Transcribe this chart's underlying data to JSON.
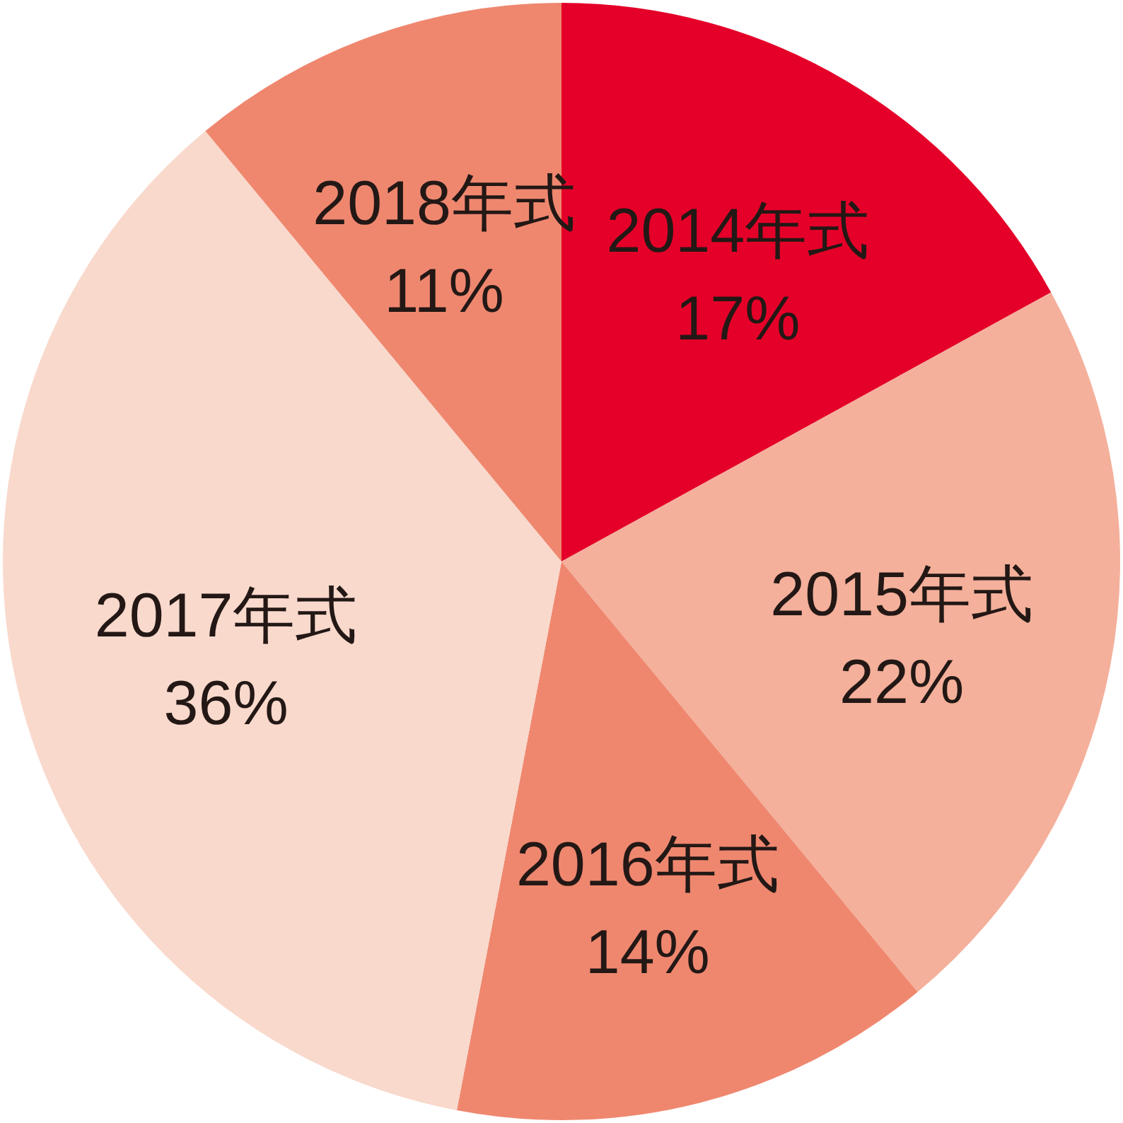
{
  "chart_data": {
    "type": "pie",
    "categories": [
      "2014年式",
      "2015年式",
      "2016年式",
      "2017年式",
      "2018年式"
    ],
    "values": [
      17,
      22,
      14,
      36,
      11
    ],
    "colors": [
      "#e50029",
      "#f4b09b",
      "#ef876f",
      "#f9d9cc",
      "#ef876f"
    ],
    "value_labels": [
      "17%",
      "22%",
      "14%",
      "36%",
      "11%"
    ]
  }
}
